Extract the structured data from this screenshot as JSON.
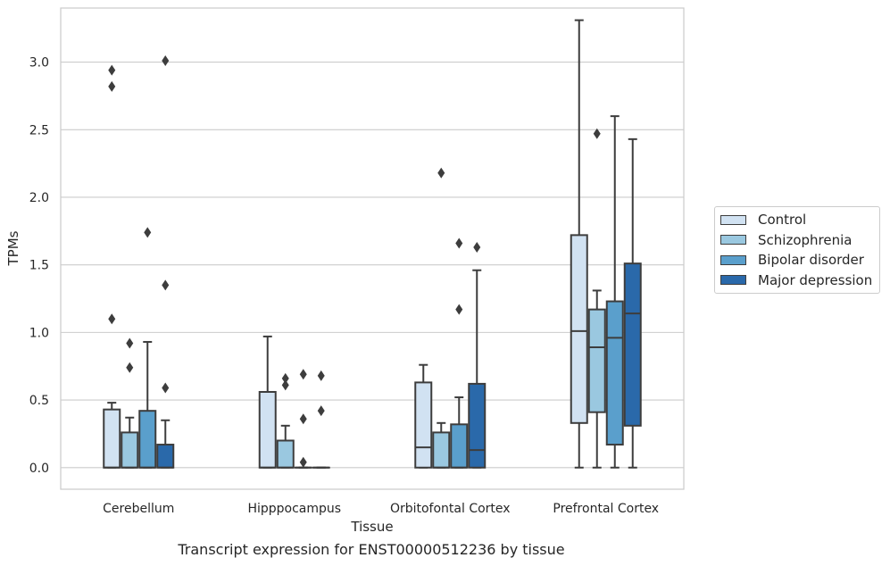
{
  "chart_data": {
    "type": "box",
    "xlabel": "Tissue",
    "ylabel": "TPMs",
    "caption": "Transcript expression for ENST00000512236 by tissue",
    "ylim": [
      -0.16,
      3.4
    ],
    "yticks": [
      "0.0",
      "0.5",
      "1.0",
      "1.5",
      "2.0",
      "2.5",
      "3.0"
    ],
    "grid": true,
    "legend_position": "right",
    "categories": [
      "Cerebellum",
      "Hipppocampus",
      "Orbitofontal Cortex",
      "Prefrontal Cortex"
    ],
    "series": [
      {
        "name": "Control",
        "color": "#d1e2f2",
        "boxes": [
          {
            "whislo": 0.0,
            "q1": 0.0,
            "med": 0.0,
            "q3": 0.43,
            "whishi": 0.48,
            "fliers": [
              1.1,
              2.82,
              2.94
            ]
          },
          {
            "whislo": 0.0,
            "q1": 0.0,
            "med": 0.0,
            "q3": 0.56,
            "whishi": 0.97,
            "fliers": []
          },
          {
            "whislo": 0.0,
            "q1": 0.0,
            "med": 0.15,
            "q3": 0.63,
            "whishi": 0.76,
            "fliers": []
          },
          {
            "whislo": 0.0,
            "q1": 0.33,
            "med": 1.01,
            "q3": 1.72,
            "whishi": 3.31,
            "fliers": []
          }
        ]
      },
      {
        "name": "Schizophrenia",
        "color": "#9ac8e0",
        "boxes": [
          {
            "whislo": 0.0,
            "q1": 0.0,
            "med": 0.0,
            "q3": 0.26,
            "whishi": 0.37,
            "fliers": [
              0.74,
              0.92
            ]
          },
          {
            "whislo": 0.0,
            "q1": 0.0,
            "med": 0.0,
            "q3": 0.2,
            "whishi": 0.31,
            "fliers": [
              0.61,
              0.66
            ]
          },
          {
            "whislo": 0.0,
            "q1": 0.0,
            "med": 0.0,
            "q3": 0.26,
            "whishi": 0.33,
            "fliers": [
              2.18
            ]
          },
          {
            "whislo": 0.0,
            "q1": 0.41,
            "med": 0.89,
            "q3": 1.17,
            "whishi": 1.31,
            "fliers": [
              2.47
            ]
          }
        ]
      },
      {
        "name": "Bipolar disorder",
        "color": "#5a9fcc",
        "boxes": [
          {
            "whislo": 0.0,
            "q1": 0.0,
            "med": 0.0,
            "q3": 0.42,
            "whishi": 0.93,
            "fliers": [
              1.74
            ]
          },
          {
            "whislo": 0.0,
            "q1": 0.0,
            "med": 0.0,
            "q3": 0.0,
            "whishi": 0.0,
            "fliers": [
              0.04,
              0.36,
              0.69
            ]
          },
          {
            "whislo": 0.0,
            "q1": 0.0,
            "med": 0.0,
            "q3": 0.32,
            "whishi": 0.52,
            "fliers": [
              1.17,
              1.66
            ]
          },
          {
            "whislo": 0.0,
            "q1": 0.17,
            "med": 0.96,
            "q3": 1.23,
            "whishi": 2.6,
            "fliers": []
          }
        ]
      },
      {
        "name": "Major depression",
        "color": "#2a69aa",
        "boxes": [
          {
            "whislo": 0.0,
            "q1": 0.0,
            "med": 0.0,
            "q3": 0.17,
            "whishi": 0.35,
            "fliers": [
              0.59,
              1.35,
              3.01
            ]
          },
          {
            "whislo": 0.0,
            "q1": 0.0,
            "med": 0.0,
            "q3": 0.0,
            "whishi": 0.0,
            "fliers": [
              0.42,
              0.68
            ]
          },
          {
            "whislo": 0.0,
            "q1": 0.0,
            "med": 0.13,
            "q3": 0.62,
            "whishi": 1.46,
            "fliers": [
              1.63
            ]
          },
          {
            "whislo": 0.0,
            "q1": 0.31,
            "med": 1.14,
            "q3": 1.51,
            "whishi": 2.43,
            "fliers": []
          }
        ]
      }
    ]
  }
}
